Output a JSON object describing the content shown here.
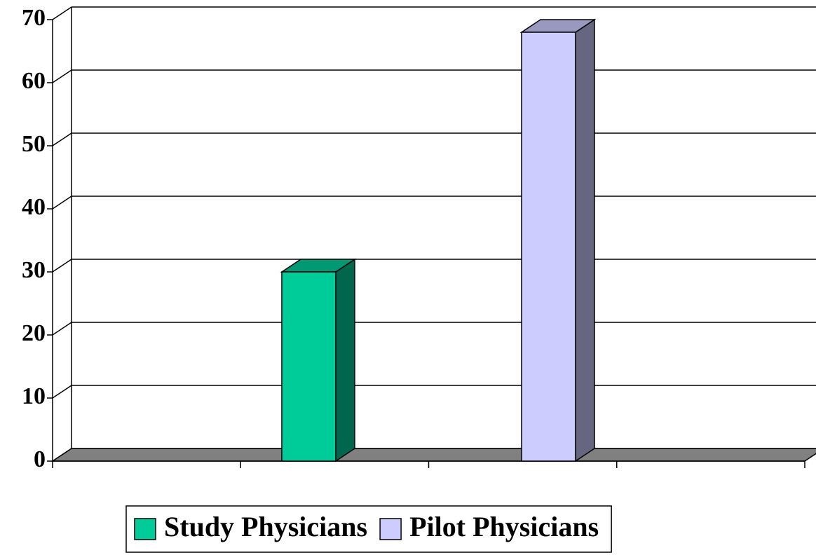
{
  "chart_data": {
    "type": "bar3d",
    "categories": [
      null
    ],
    "series": [
      {
        "name": "Study Physicians",
        "color": "#00cc99",
        "values": [
          30
        ]
      },
      {
        "name": "Pilot Physicians",
        "color": "#ccccff",
        "values": [
          68
        ]
      }
    ],
    "ylim": [
      0,
      70
    ],
    "yticks": [
      0,
      10,
      20,
      30,
      40,
      50,
      60,
      70
    ],
    "grid": true,
    "legend": "bottom"
  }
}
